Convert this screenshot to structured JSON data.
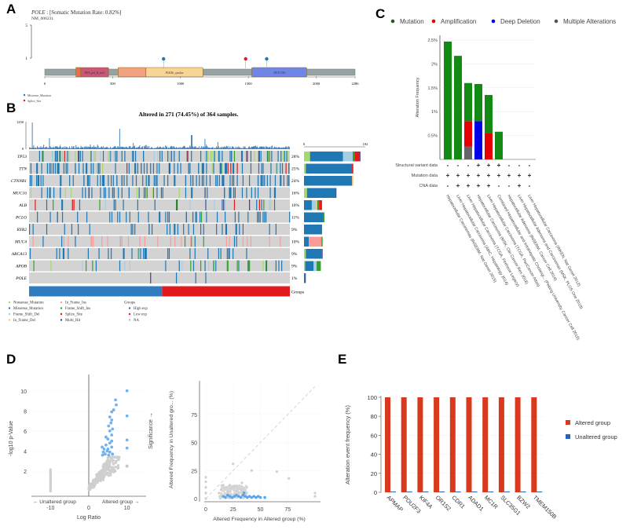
{
  "panels": {
    "A": "A",
    "B": "B",
    "C": "C",
    "D": "D",
    "E": "E"
  },
  "chart_data": [
    {
      "id": "A",
      "type": "scatter",
      "subtype": "lollipop",
      "gene": "POLE",
      "title_rest": " : [Somatic Mutation Rate: 0.82%]",
      "transcript": "NM_006231",
      "ylim": [
        0,
        5
      ],
      "y_ticks": [
        "5",
        "1"
      ],
      "x_ticks": [
        0,
        500,
        1000,
        1500,
        2000,
        2286
      ],
      "protein_length": 2286,
      "domains": [
        {
          "name": "DNA_pol_B_exo1",
          "start": 265,
          "end": 470,
          "color": "#c8577a"
        },
        {
          "name": "",
          "start": 540,
          "end": 745,
          "color": "#f2a27e"
        },
        {
          "name": "POLBc_epsilon",
          "start": 745,
          "end": 1165,
          "color": "#f8d595"
        },
        {
          "name": "DUF1744",
          "start": 1525,
          "end": 1930,
          "color": "#6f86e6"
        }
      ],
      "mutations": [
        {
          "pos": 875,
          "count": 1,
          "type": "Missense_Mutation"
        },
        {
          "pos": 1480,
          "count": 1,
          "type": "Splice_Site"
        },
        {
          "pos": 1635,
          "count": 1,
          "type": "Missense_Mutation"
        }
      ],
      "legend": [
        {
          "label": "Missense_Mutation",
          "color": "#1f78b4"
        },
        {
          "label": "Splice_Site",
          "color": "#e31a1c"
        }
      ]
    },
    {
      "id": "B",
      "type": "heatmap",
      "subtype": "oncoprint",
      "title": "Altered in 271 (74.45%) of 364 samples.",
      "tmb_ylim": [
        0,
        1250
      ],
      "tmb_ticks": [
        "1250",
        "0"
      ],
      "side_axis_ticks": [
        "0",
        "102"
      ],
      "genes": [
        "TP53",
        "TTN",
        "CTNNB1",
        "MUC16",
        "ALB",
        "PCLO",
        "RYR2",
        "MUC4",
        "ABCA13",
        "APOB",
        "POLE"
      ],
      "percentages": [
        "28%",
        "25%",
        "24%",
        "16%",
        "10%",
        "11%",
        "9%",
        "10%",
        "9%",
        "9%",
        "1%"
      ],
      "side_bars": [
        [
          {
            "type": "Nonsense_Mutation",
            "n": 10
          },
          {
            "type": "Missense_Mutation",
            "n": 55
          },
          {
            "type": "Frame_Shift_Del",
            "n": 16
          },
          {
            "type": "Frame_Shift_Ins",
            "n": 3
          },
          {
            "type": "Splice_Site",
            "n": 8
          },
          {
            "type": "Multi_Hit",
            "n": 2
          }
        ],
        [
          {
            "type": "Nonsense_Mutation",
            "n": 3
          },
          {
            "type": "Missense_Mutation",
            "n": 76
          },
          {
            "type": "Splice_Site",
            "n": 2
          },
          {
            "type": "Multi_Hit",
            "n": 1
          }
        ],
        [
          {
            "type": "Missense_Mutation",
            "n": 80
          },
          {
            "type": "In_Frame_Del",
            "n": 2
          }
        ],
        [
          {
            "type": "Nonsense_Mutation",
            "n": 5
          },
          {
            "type": "Missense_Mutation",
            "n": 48
          },
          {
            "type": "Multi_Hit",
            "n": 1
          }
        ],
        [
          {
            "type": "Missense_Mutation",
            "n": 13
          },
          {
            "type": "Frame_Shift_Del",
            "n": 7
          },
          {
            "type": "In_Frame_Del",
            "n": 2
          },
          {
            "type": "Frame_Shift_Ins",
            "n": 3
          },
          {
            "type": "Splice_Site",
            "n": 4
          },
          {
            "type": "Multi_Hit",
            "n": 1
          }
        ],
        [
          {
            "type": "Missense_Mutation",
            "n": 32
          },
          {
            "type": "Frame_Shift_Ins",
            "n": 2
          }
        ],
        [
          {
            "type": "Missense_Mutation",
            "n": 29
          },
          {
            "type": "Multi_Hit",
            "n": 1
          }
        ],
        [
          {
            "type": "Missense_Mutation",
            "n": 8
          },
          {
            "type": "In_Frame_Ins",
            "n": 21
          },
          {
            "type": "Frame_Shift_Ins",
            "n": 2
          }
        ],
        [
          {
            "type": "Nonsense_Mutation",
            "n": 3
          },
          {
            "type": "Missense_Mutation",
            "n": 27
          },
          {
            "type": "Multi_Hit",
            "n": 1
          }
        ],
        [
          {
            "type": "Nonsense_Mutation",
            "n": 2
          },
          {
            "type": "Missense_Mutation",
            "n": 14
          },
          {
            "type": "Frame_Shift_Del",
            "n": 5
          },
          {
            "type": "Frame_Shift_Ins",
            "n": 7
          }
        ],
        [
          {
            "type": "Missense_Mutation",
            "n": 2
          },
          {
            "type": "Multi_Hit",
            "n": 1
          }
        ]
      ],
      "groups_label": "Groups",
      "groups_split": 0.51,
      "legend_types": [
        {
          "label": "Nonsense_Mutation",
          "color": "#a6d96a"
        },
        {
          "label": "Missense_Mutation",
          "color": "#1f78b4"
        },
        {
          "label": "Frame_Shift_Del",
          "color": "#a6cee3"
        },
        {
          "label": "In_Frame_Del",
          "color": "#fdbf6f"
        },
        {
          "label": "In_Frame_Ins",
          "color": "#fb9a99"
        },
        {
          "label": "Frame_Shift_Ins",
          "color": "#33a02c"
        },
        {
          "label": "Splice_Site",
          "color": "#e31a1c"
        },
        {
          "label": "Multi_Hit",
          "color": "#4b3c8c"
        }
      ],
      "legend_groups_title": "Groups",
      "legend_groups": [
        {
          "label": "High exp",
          "color": "#1f78b4"
        },
        {
          "label": "Low exp",
          "color": "#e31a1c"
        },
        {
          "label": "NA",
          "color": "#bbbbbb"
        }
      ]
    },
    {
      "id": "C",
      "type": "bar",
      "stacked": true,
      "ylabel": "Alteration Frequency",
      "y_ticks": [
        "0.5%",
        "1%",
        "1.5%",
        "2%",
        "2.5%"
      ],
      "ylim": [
        0,
        2.6
      ],
      "legend": [
        {
          "label": "Mutation",
          "color": "#138a13"
        },
        {
          "label": "Amplification",
          "color": "#e60000"
        },
        {
          "label": "Deep Deletion",
          "color": "#0000e6"
        },
        {
          "label": "Multiple Alterations",
          "color": "#666666"
        }
      ],
      "categories": [
        "Hepatocellular Carcinomas (INSERM, Nat Genet 2015)",
        "Liver Hepatocellular Carcinoma (AMC, Hepatology 2014)",
        "Liver Hepatocellular Carcinoma (TCGA, Firehose Legacy)",
        "Hepatocellular Carcinoma (MSK, Clin Cancer Res 2018)",
        "Liver Hepatocellular Carcinoma (TCGA, PanCancer Atlas)",
        "Combined Hepatocellular and Intrahepatic Cholangi... (Peking University, Cancer Cell 2019)",
        "Hepatocellular Adenoma (INSERM, Cancer Cell 2014)",
        "Liver Hepatocellular Adenoma and Carcinomas (MSK, PLOS One 2018)",
        "Liver Hepatocellular Carcinoma (RIKEN, Nat Genet 2012)"
      ],
      "series": [
        {
          "name": "Multiple Alterations",
          "values": [
            0,
            0,
            0.27,
            0,
            0,
            0,
            0,
            0,
            0
          ]
        },
        {
          "name": "Deep Deletion",
          "values": [
            0,
            0,
            0,
            0.8,
            0,
            0,
            0,
            0,
            0
          ]
        },
        {
          "name": "Amplification",
          "values": [
            0,
            0,
            0.53,
            0,
            0.55,
            0,
            0,
            0,
            0
          ]
        },
        {
          "name": "Mutation",
          "values": [
            2.47,
            2.17,
            0.8,
            0.78,
            0.8,
            0.58,
            0,
            0,
            0
          ]
        }
      ],
      "data_rows": [
        {
          "label": "Structural variant data",
          "values": [
            "-",
            "-",
            "-",
            "+",
            "+",
            "+",
            "-",
            "-",
            "-"
          ]
        },
        {
          "label": "Mutation data",
          "values": [
            "+",
            "+",
            "+",
            "+",
            "+",
            "+",
            "+",
            "+",
            "+"
          ]
        },
        {
          "label": "CNA data",
          "values": [
            "-",
            "+",
            "+",
            "+",
            "+",
            "-",
            "-",
            "+",
            "-"
          ]
        }
      ]
    },
    {
      "id": "D1",
      "type": "scatter",
      "subtype": "volcano",
      "xlabel": "Log Ratio",
      "ylabel": "-log10 p-Value",
      "right_label": "Significance →",
      "left_group": "← Unaltered group",
      "right_group": "Altered group →",
      "x_ticks": [
        -10,
        0,
        10
      ],
      "y_ticks": [
        2,
        4,
        6,
        8,
        10
      ],
      "xlim": [
        -15,
        15
      ],
      "ylim": [
        -0.5,
        11
      ],
      "significant_points": [
        [
          10,
          10
        ],
        [
          7,
          9.1
        ],
        [
          7.2,
          8.6
        ],
        [
          6.5,
          8.1
        ],
        [
          6,
          7.9
        ],
        [
          10,
          7.5
        ],
        [
          5.5,
          7.4
        ],
        [
          6,
          7.1
        ],
        [
          5.8,
          6.8
        ],
        [
          5.2,
          6.5
        ],
        [
          6.2,
          6.2
        ],
        [
          5.5,
          6
        ],
        [
          6,
          5.6
        ],
        [
          4.5,
          5.4
        ],
        [
          5,
          5.2
        ],
        [
          6,
          5
        ],
        [
          10,
          5.1
        ],
        [
          5.5,
          4.8
        ],
        [
          4.5,
          4.6
        ],
        [
          3.5,
          4.4
        ],
        [
          6,
          4.4
        ],
        [
          10,
          4.3
        ],
        [
          4,
          4.2
        ],
        [
          5,
          4.2
        ],
        [
          4.8,
          4
        ],
        [
          3.8,
          3.9
        ],
        [
          5.5,
          3.9
        ],
        [
          4.3,
          3.7
        ],
        [
          5.2,
          3.6
        ],
        [
          3.6,
          3.6
        ],
        [
          6.2,
          3.7
        ]
      ],
      "nonsignificant_summary": "dense gray cluster from (0,0) to (8,3.5); column at x=-10 from y=0 to 2.2; point at (10,2.5)"
    },
    {
      "id": "D2",
      "type": "scatter",
      "xlabel": "Altered Frequency in Altered group (%)",
      "ylabel": "Altered Frequency in Unaltered gro... (%)",
      "x_ticks": [
        0,
        25,
        50,
        75
      ],
      "y_ticks": [
        0,
        25,
        50,
        75
      ],
      "xlim": [
        0,
        105
      ],
      "ylim": [
        0,
        105
      ],
      "diagonal": true,
      "significant_points": [
        [
          16,
          2
        ],
        [
          18,
          1
        ],
        [
          20,
          3
        ],
        [
          22,
          2
        ],
        [
          24,
          1
        ],
        [
          26,
          2
        ],
        [
          28,
          3
        ],
        [
          30,
          2
        ],
        [
          32,
          1
        ],
        [
          34,
          3
        ],
        [
          36,
          2
        ],
        [
          38,
          1
        ],
        [
          40,
          2
        ],
        [
          42,
          1
        ],
        [
          44,
          2
        ],
        [
          46,
          1
        ],
        [
          48,
          2
        ],
        [
          50,
          1
        ],
        [
          54,
          1
        ],
        [
          35,
          5
        ]
      ],
      "gray_points": [
        [
          0,
          0
        ],
        [
          0,
          5
        ],
        [
          0,
          10
        ],
        [
          0,
          15
        ],
        [
          0,
          19
        ],
        [
          12,
          5
        ],
        [
          14,
          8
        ],
        [
          16,
          12
        ],
        [
          18,
          10
        ],
        [
          20,
          6
        ],
        [
          22,
          12
        ],
        [
          24,
          9
        ],
        [
          26,
          11
        ],
        [
          28,
          7
        ],
        [
          30,
          5
        ],
        [
          32,
          8
        ],
        [
          34,
          6
        ],
        [
          36,
          4
        ],
        [
          25,
          31
        ],
        [
          42,
          25
        ],
        [
          65,
          24
        ],
        [
          76,
          18
        ],
        [
          100,
          2
        ],
        [
          100,
          5
        ],
        [
          33,
          14
        ]
      ]
    },
    {
      "id": "E",
      "type": "bar",
      "ylabel": "Alteration event frequency (%)",
      "ylim": [
        0,
        100
      ],
      "y_ticks": [
        0,
        20,
        40,
        60,
        80,
        100
      ],
      "categories": [
        "APMAP",
        "POU2F3",
        "KIF4A",
        "OR1S2",
        "CDR1",
        "ADAD1",
        "MC1R",
        "SLC35G1",
        "BZW2",
        "TMEM150B"
      ],
      "series": [
        {
          "name": "Altered group",
          "color": "#d9391c",
          "values": [
            100,
            100,
            100,
            100,
            100,
            100,
            100,
            100,
            100,
            100
          ]
        },
        {
          "name": "Unaltered group",
          "color": "#2563c0",
          "values": [
            0,
            0,
            0,
            0,
            0,
            0,
            0,
            0,
            0,
            0
          ]
        }
      ],
      "legend": [
        {
          "label": "Altered group",
          "color": "#d9391c"
        },
        {
          "label": "Unaltered group",
          "color": "#2563c0"
        }
      ]
    }
  ]
}
